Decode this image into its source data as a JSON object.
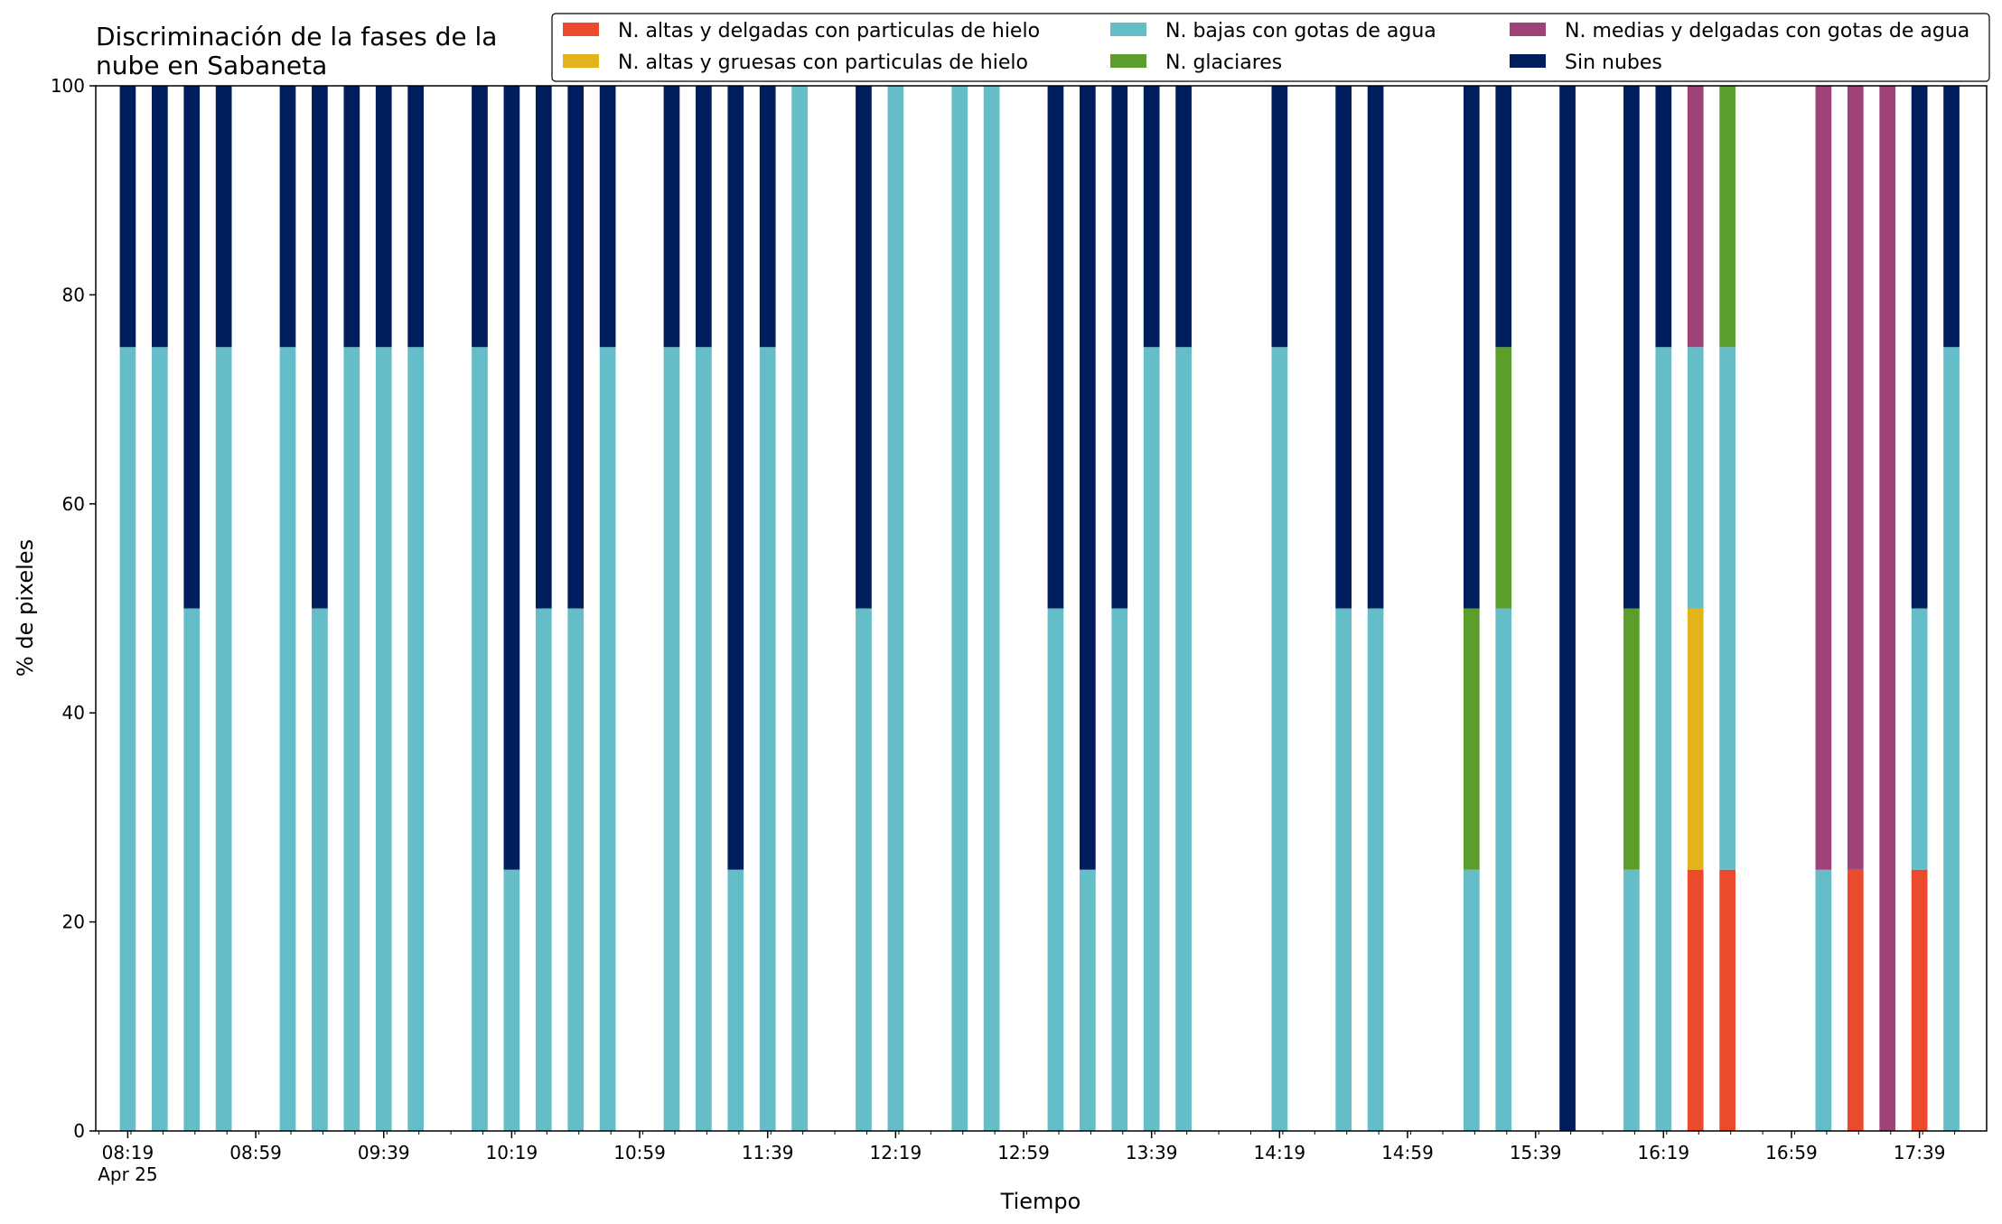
{
  "chart_data": {
    "type": "bar",
    "stacked": true,
    "title": "Discriminación de la fases de la\nnube en Sabaneta",
    "xlabel": "Tiempo",
    "ylabel": "% de pixeles",
    "ylim": [
      0,
      100
    ],
    "yticks": [
      0,
      20,
      40,
      60,
      80,
      100
    ],
    "xlim_minutes": [
      489,
      1080
    ],
    "xtick_labels": [
      "08:19\nApr 25",
      "08:59",
      "09:39",
      "10:19",
      "10:59",
      "11:39",
      "12:19",
      "12:59",
      "13:39",
      "14:19",
      "14:59",
      "15:39",
      "16:19",
      "16:59",
      "17:39"
    ],
    "xtick_minutes": [
      499,
      539,
      579,
      619,
      659,
      699,
      739,
      779,
      819,
      859,
      899,
      939,
      979,
      1019,
      1059
    ],
    "minor_tick_step_minutes": 10,
    "bar_width_minutes": 5,
    "grid": false,
    "legend_position": "top-right",
    "legend_columns": 3,
    "times": [
      "08:19",
      "08:29",
      "08:39",
      "08:49",
      "09:09",
      "09:19",
      "09:29",
      "09:39",
      "09:49",
      "10:09",
      "10:19",
      "10:29",
      "10:39",
      "10:49",
      "11:09",
      "11:19",
      "11:29",
      "11:39",
      "11:49",
      "12:09",
      "12:19",
      "12:39",
      "12:49",
      "13:09",
      "13:19",
      "13:29",
      "13:39",
      "13:49",
      "14:19",
      "14:39",
      "14:49",
      "15:19",
      "15:29",
      "15:49",
      "16:09",
      "16:19",
      "16:29",
      "16:39",
      "17:09",
      "17:19",
      "17:29",
      "17:39",
      "17:49"
    ],
    "series": [
      {
        "name": "N. altas y delgadas con particulas de hielo",
        "color": "#ec4a2d",
        "values": [
          0,
          0,
          0,
          0,
          0,
          0,
          0,
          0,
          0,
          0,
          0,
          0,
          0,
          0,
          0,
          0,
          0,
          0,
          0,
          0,
          0,
          0,
          0,
          0,
          0,
          0,
          0,
          0,
          0,
          0,
          0,
          0,
          0,
          0,
          0,
          0,
          25,
          25,
          0,
          25,
          0,
          25,
          0
        ]
      },
      {
        "name": "N. altas y gruesas con particulas de hielo",
        "color": "#e3b31c",
        "values": [
          0,
          0,
          0,
          0,
          0,
          0,
          0,
          0,
          0,
          0,
          0,
          0,
          0,
          0,
          0,
          0,
          0,
          0,
          0,
          0,
          0,
          0,
          0,
          0,
          0,
          0,
          0,
          0,
          0,
          0,
          0,
          0,
          0,
          0,
          0,
          0,
          25,
          0,
          0,
          0,
          0,
          0,
          0
        ]
      },
      {
        "name": "N. bajas con gotas de agua",
        "color": "#65bdc8",
        "values": [
          75,
          75,
          50,
          75,
          75,
          50,
          75,
          75,
          75,
          75,
          25,
          50,
          50,
          75,
          75,
          75,
          25,
          75,
          100,
          50,
          100,
          100,
          100,
          50,
          25,
          50,
          75,
          75,
          75,
          50,
          50,
          25,
          50,
          0,
          25,
          75,
          25,
          50,
          25,
          0,
          0,
          25,
          75
        ]
      },
      {
        "name": "N. glaciares",
        "color": "#5c9e2c",
        "values": [
          0,
          0,
          0,
          0,
          0,
          0,
          0,
          0,
          0,
          0,
          0,
          0,
          0,
          0,
          0,
          0,
          0,
          0,
          0,
          0,
          0,
          0,
          0,
          0,
          0,
          0,
          0,
          0,
          0,
          0,
          0,
          25,
          25,
          0,
          25,
          0,
          0,
          25,
          0,
          0,
          0,
          0,
          0
        ]
      },
      {
        "name": "N. medias y delgadas con gotas de agua",
        "color": "#9f4277",
        "values": [
          0,
          0,
          0,
          0,
          0,
          0,
          0,
          0,
          0,
          0,
          0,
          0,
          0,
          0,
          0,
          0,
          0,
          0,
          0,
          0,
          0,
          0,
          0,
          0,
          0,
          0,
          0,
          0,
          0,
          0,
          0,
          0,
          0,
          0,
          0,
          0,
          25,
          0,
          75,
          75,
          100,
          0,
          0
        ]
      },
      {
        "name": "Sin nubes",
        "color": "#001e5e",
        "values": [
          25,
          25,
          50,
          25,
          25,
          50,
          25,
          25,
          25,
          25,
          75,
          50,
          50,
          25,
          25,
          25,
          75,
          25,
          0,
          50,
          0,
          0,
          0,
          50,
          75,
          50,
          25,
          25,
          25,
          50,
          50,
          50,
          25,
          100,
          50,
          25,
          0,
          0,
          0,
          0,
          0,
          50,
          25
        ]
      }
    ]
  }
}
